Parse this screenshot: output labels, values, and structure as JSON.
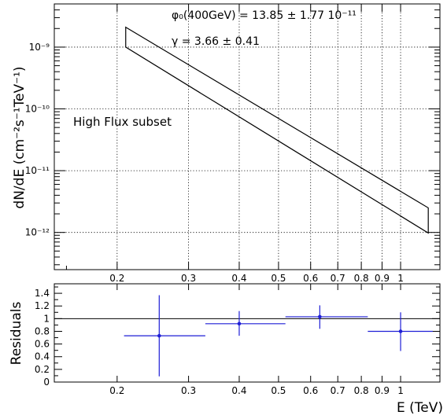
{
  "chart_data": [
    {
      "type": "line",
      "panel": "spectrum",
      "ylabel": "dN/dE (cm⁻²s⁻¹TeV⁻¹)",
      "xscale": "log",
      "yscale": "log",
      "xlim": [
        0.14,
        1.25
      ],
      "ylim": [
        2.5e-13,
        5e-09
      ],
      "grid": true,
      "annotations": [
        "φ₀(400GeV) = 13.85 ± 1.77  10⁻¹¹",
        "γ = 3.66 ± 0.41",
        "High Flux subset"
      ],
      "x_ticks": [
        {
          "value": 0.2,
          "label": "0.2"
        },
        {
          "value": 0.3,
          "label": "0.3"
        },
        {
          "value": 0.4,
          "label": "0.4"
        },
        {
          "value": 0.5,
          "label": "0.5"
        },
        {
          "value": 0.6,
          "label": "0.6"
        },
        {
          "value": 0.7,
          "label": "0.7"
        },
        {
          "value": 0.8,
          "label": "0.8"
        },
        {
          "value": 0.9,
          "label": "0.9"
        },
        {
          "value": 1.0,
          "label": "1"
        }
      ],
      "y_ticks": [
        {
          "value": 1e-12,
          "label": "10⁻¹²"
        },
        {
          "value": 1e-11,
          "label": "10⁻¹¹"
        },
        {
          "value": 1e-10,
          "label": "10⁻¹⁰"
        },
        {
          "value": 1e-09,
          "label": "10⁻⁹"
        }
      ],
      "band": {
        "upper": [
          [
            0.21,
            2.1e-09
          ],
          [
            1.17,
            2.5e-12
          ]
        ],
        "lower": [
          [
            0.21,
            1e-09
          ],
          [
            1.17,
            9.8e-13
          ]
        ]
      }
    },
    {
      "type": "scatter",
      "panel": "residuals",
      "xlabel": "E (TeV)",
      "ylabel": "Residuals",
      "xscale": "log",
      "xlim": [
        0.14,
        1.25
      ],
      "ylim": [
        0,
        1.55
      ],
      "reference_line": 1,
      "y_ticks": [
        {
          "value": 0,
          "label": "0"
        },
        {
          "value": 0.2,
          "label": "0.2"
        },
        {
          "value": 0.4,
          "label": "0.4"
        },
        {
          "value": 0.6,
          "label": "0.6"
        },
        {
          "value": 0.8,
          "label": "0.8"
        },
        {
          "value": 1.0,
          "label": "1"
        },
        {
          "value": 1.2,
          "label": "1.2"
        },
        {
          "value": 1.4,
          "label": "1.4"
        }
      ],
      "x_ticks": [
        {
          "value": 0.2,
          "label": "0.2"
        },
        {
          "value": 0.3,
          "label": "0.3"
        },
        {
          "value": 0.4,
          "label": "0.4"
        },
        {
          "value": 0.5,
          "label": "0.5"
        },
        {
          "value": 0.6,
          "label": "0.6"
        },
        {
          "value": 0.7,
          "label": "0.7"
        },
        {
          "value": 0.8,
          "label": "0.8"
        },
        {
          "value": 0.9,
          "label": "0.9"
        },
        {
          "value": 1.0,
          "label": "1"
        }
      ],
      "points": [
        {
          "x": 0.254,
          "y": 0.73,
          "xlow": 0.208,
          "xhigh": 0.33,
          "ylow": 0.09,
          "yhigh": 1.37
        },
        {
          "x": 0.4,
          "y": 0.92,
          "xlow": 0.33,
          "xhigh": 0.52,
          "ylow": 0.73,
          "yhigh": 1.12
        },
        {
          "x": 0.632,
          "y": 1.03,
          "xlow": 0.52,
          "xhigh": 0.83,
          "ylow": 0.84,
          "yhigh": 1.21
        },
        {
          "x": 1.0,
          "y": 0.8,
          "xlow": 0.83,
          "xhigh": 1.2,
          "ylow": 0.49,
          "yhigh": 1.1
        }
      ],
      "color": "#1f1fd6"
    }
  ]
}
